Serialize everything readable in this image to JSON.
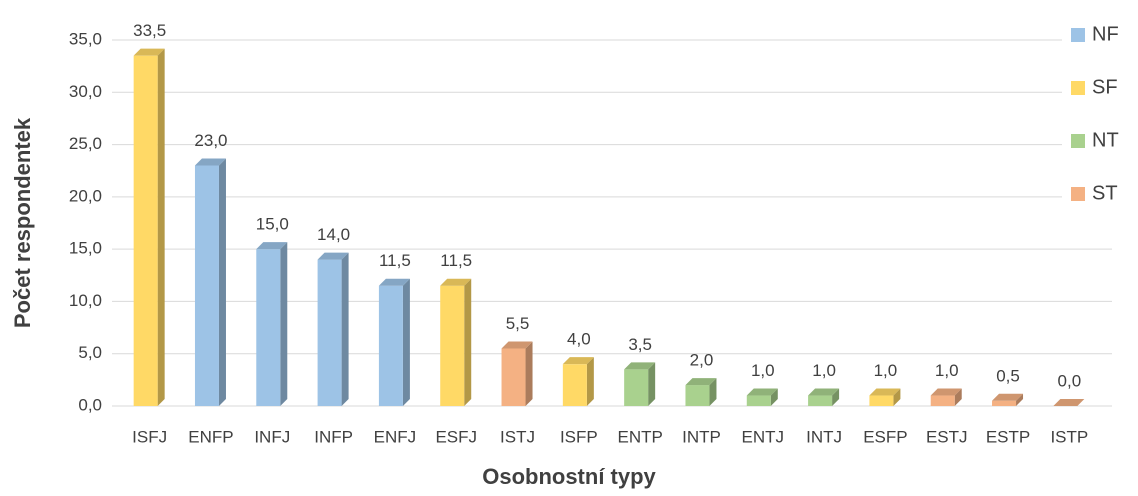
{
  "chart_data": {
    "type": "bar3d",
    "x_label": "Osobnostní typy",
    "y_label": "Počet respondentek",
    "categories": [
      "ISFJ",
      "ENFP",
      "INFJ",
      "INFP",
      "ENFJ",
      "ESFJ",
      "ISTJ",
      "ISFP",
      "ENTP",
      "INTP",
      "ENTJ",
      "INTJ",
      "ESFP",
      "ESTJ",
      "ESTP",
      "ISTP"
    ],
    "series": [
      {
        "name": "NF",
        "color": "#9dc3e6",
        "values": [
          null,
          23,
          15,
          14,
          11.5,
          null,
          null,
          null,
          null,
          null,
          null,
          null,
          null,
          null,
          null,
          null
        ],
        "value_labels": [
          null,
          "23,0",
          "15,0",
          "14,0",
          "11,5",
          null,
          null,
          null,
          null,
          null,
          null,
          null,
          null,
          null,
          null,
          null
        ]
      },
      {
        "name": "SF",
        "color": "#ffd966",
        "values": [
          33.5,
          null,
          null,
          null,
          null,
          11.5,
          null,
          4,
          null,
          null,
          null,
          null,
          1,
          null,
          null,
          null
        ],
        "value_labels": [
          "33,5",
          null,
          null,
          null,
          null,
          "11,5",
          null,
          "4,0",
          null,
          null,
          null,
          null,
          "1,0",
          null,
          null,
          null
        ]
      },
      {
        "name": "NT",
        "color": "#a9d18e",
        "values": [
          null,
          null,
          null,
          null,
          null,
          null,
          null,
          null,
          3.5,
          2,
          1,
          1,
          null,
          null,
          null,
          null
        ],
        "value_labels": [
          null,
          null,
          null,
          null,
          null,
          null,
          null,
          null,
          "3,5",
          "2,0",
          "1,0",
          "1,0",
          null,
          null,
          null,
          null
        ]
      },
      {
        "name": "ST",
        "color": "#f4b183",
        "values": [
          null,
          null,
          null,
          null,
          null,
          null,
          5.5,
          null,
          null,
          null,
          null,
          null,
          null,
          1,
          0.5,
          0
        ],
        "value_labels": [
          null,
          null,
          null,
          null,
          null,
          null,
          "5,5",
          null,
          null,
          null,
          null,
          null,
          null,
          "1,0",
          "0,5",
          "0,0"
        ]
      }
    ],
    "ylim": [
      0,
      35
    ],
    "yticks": [
      {
        "value": 0,
        "label": "0,0"
      },
      {
        "value": 5,
        "label": "5,0"
      },
      {
        "value": 10,
        "label": "10,0"
      },
      {
        "value": 15,
        "label": "15,0"
      },
      {
        "value": 20,
        "label": "20,0"
      },
      {
        "value": 25,
        "label": "25,0"
      },
      {
        "value": 30,
        "label": "30,0"
      },
      {
        "value": 35,
        "label": "35,0"
      }
    ],
    "grid": true,
    "legend": "right"
  }
}
